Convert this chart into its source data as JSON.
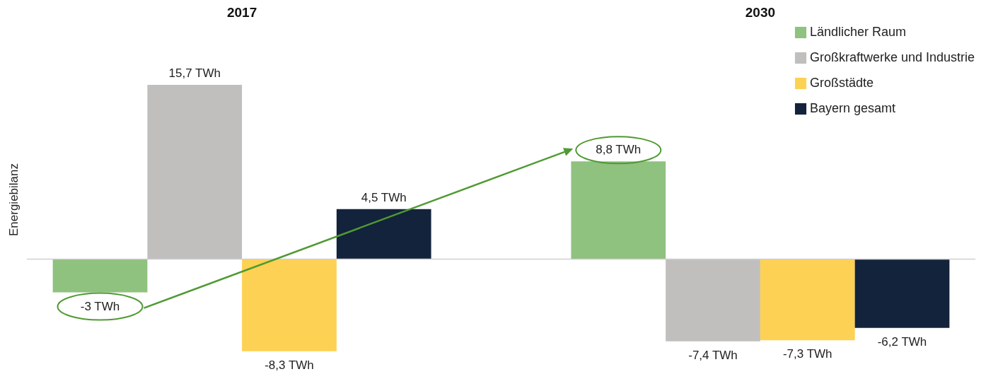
{
  "chart_data": {
    "type": "bar",
    "ylabel": "Energiebilanz",
    "categories": [
      "2017",
      "2030"
    ],
    "legend": "top right",
    "series": [
      {
        "name": "Ländlicher Raum",
        "color": "#8fc17f",
        "values": [
          -3,
          8.8
        ],
        "value_labels": [
          "-3 TWh",
          "8,8 TWh"
        ]
      },
      {
        "name": "Großkraftwerke und Industrie",
        "color": "#c0bfbe",
        "values": [
          15.7,
          -7.4
        ],
        "value_labels": [
          "15,7 TWh",
          "-7,4 TWh"
        ]
      },
      {
        "name": "Großstädte",
        "color": "#fdd153",
        "values": [
          -8.3,
          -7.3
        ],
        "value_labels": [
          "-8,3 TWh",
          "-7,3 TWh"
        ]
      },
      {
        "name": "Bayern gesamt",
        "color": "#13233b",
        "values": [
          4.5,
          -6.2
        ],
        "value_labels": [
          "4,5 TWh",
          "-6,2 TWh"
        ]
      }
    ]
  }
}
